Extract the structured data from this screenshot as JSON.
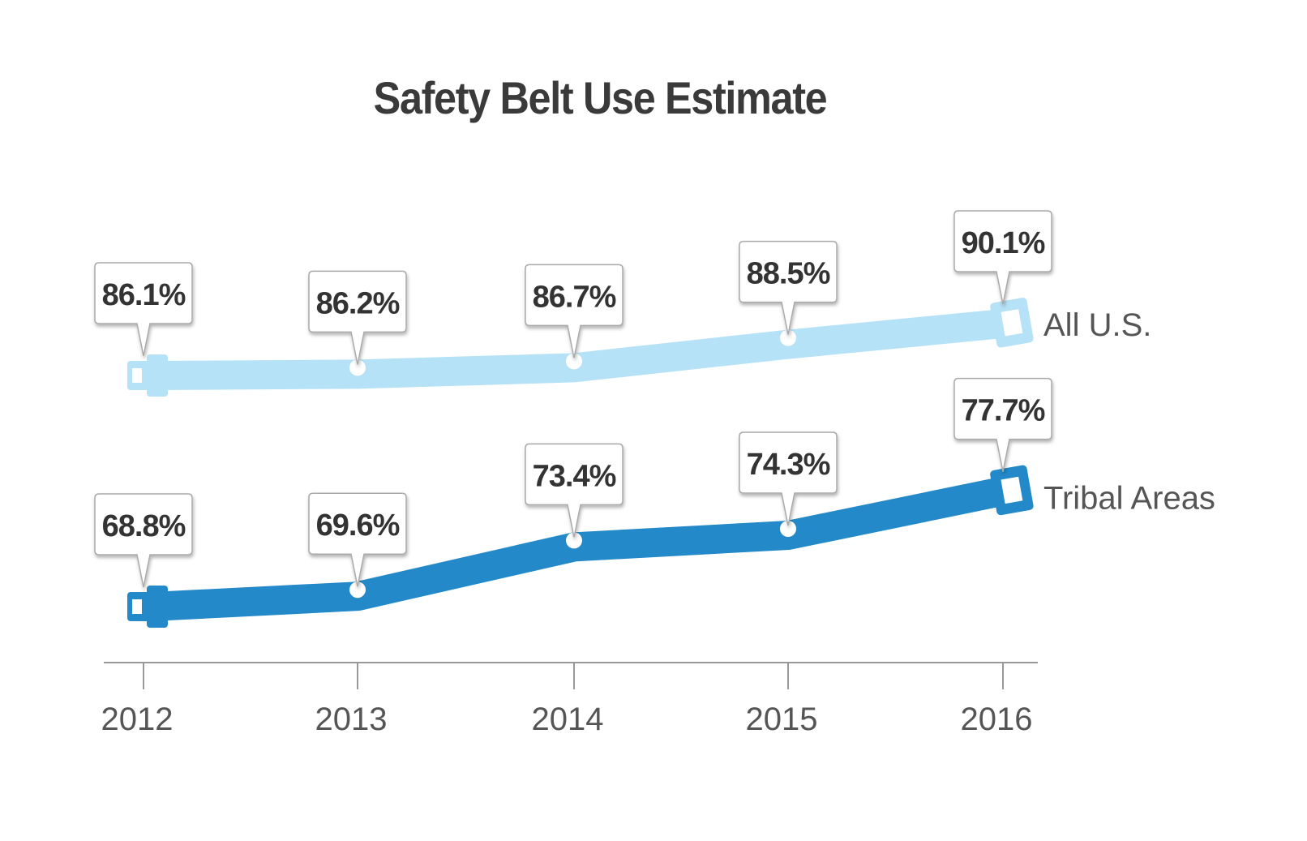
{
  "chart_data": {
    "type": "line",
    "title": "Safety Belt Use Estimate",
    "categories": [
      "2012",
      "2013",
      "2014",
      "2015",
      "2016"
    ],
    "series": [
      {
        "name": "All U.S.",
        "values": [
          86.1,
          86.2,
          86.7,
          88.5,
          90.1
        ],
        "labels": [
          "86.1%",
          "86.2%",
          "86.7%",
          "88.5%",
          "90.1%"
        ],
        "color": "#b5e2f6"
      },
      {
        "name": "Tribal Areas",
        "values": [
          68.8,
          69.6,
          73.4,
          74.3,
          77.7
        ],
        "labels": [
          "68.8%",
          "69.6%",
          "73.4%",
          "74.3%",
          "77.7%"
        ],
        "color": "#2389c9"
      }
    ],
    "xlabel": "",
    "ylabel": "",
    "y_axis": "broken, not shown",
    "legend": "right, at line ends",
    "grid": false,
    "axis_color": "#999999",
    "text_color": "#333333"
  }
}
